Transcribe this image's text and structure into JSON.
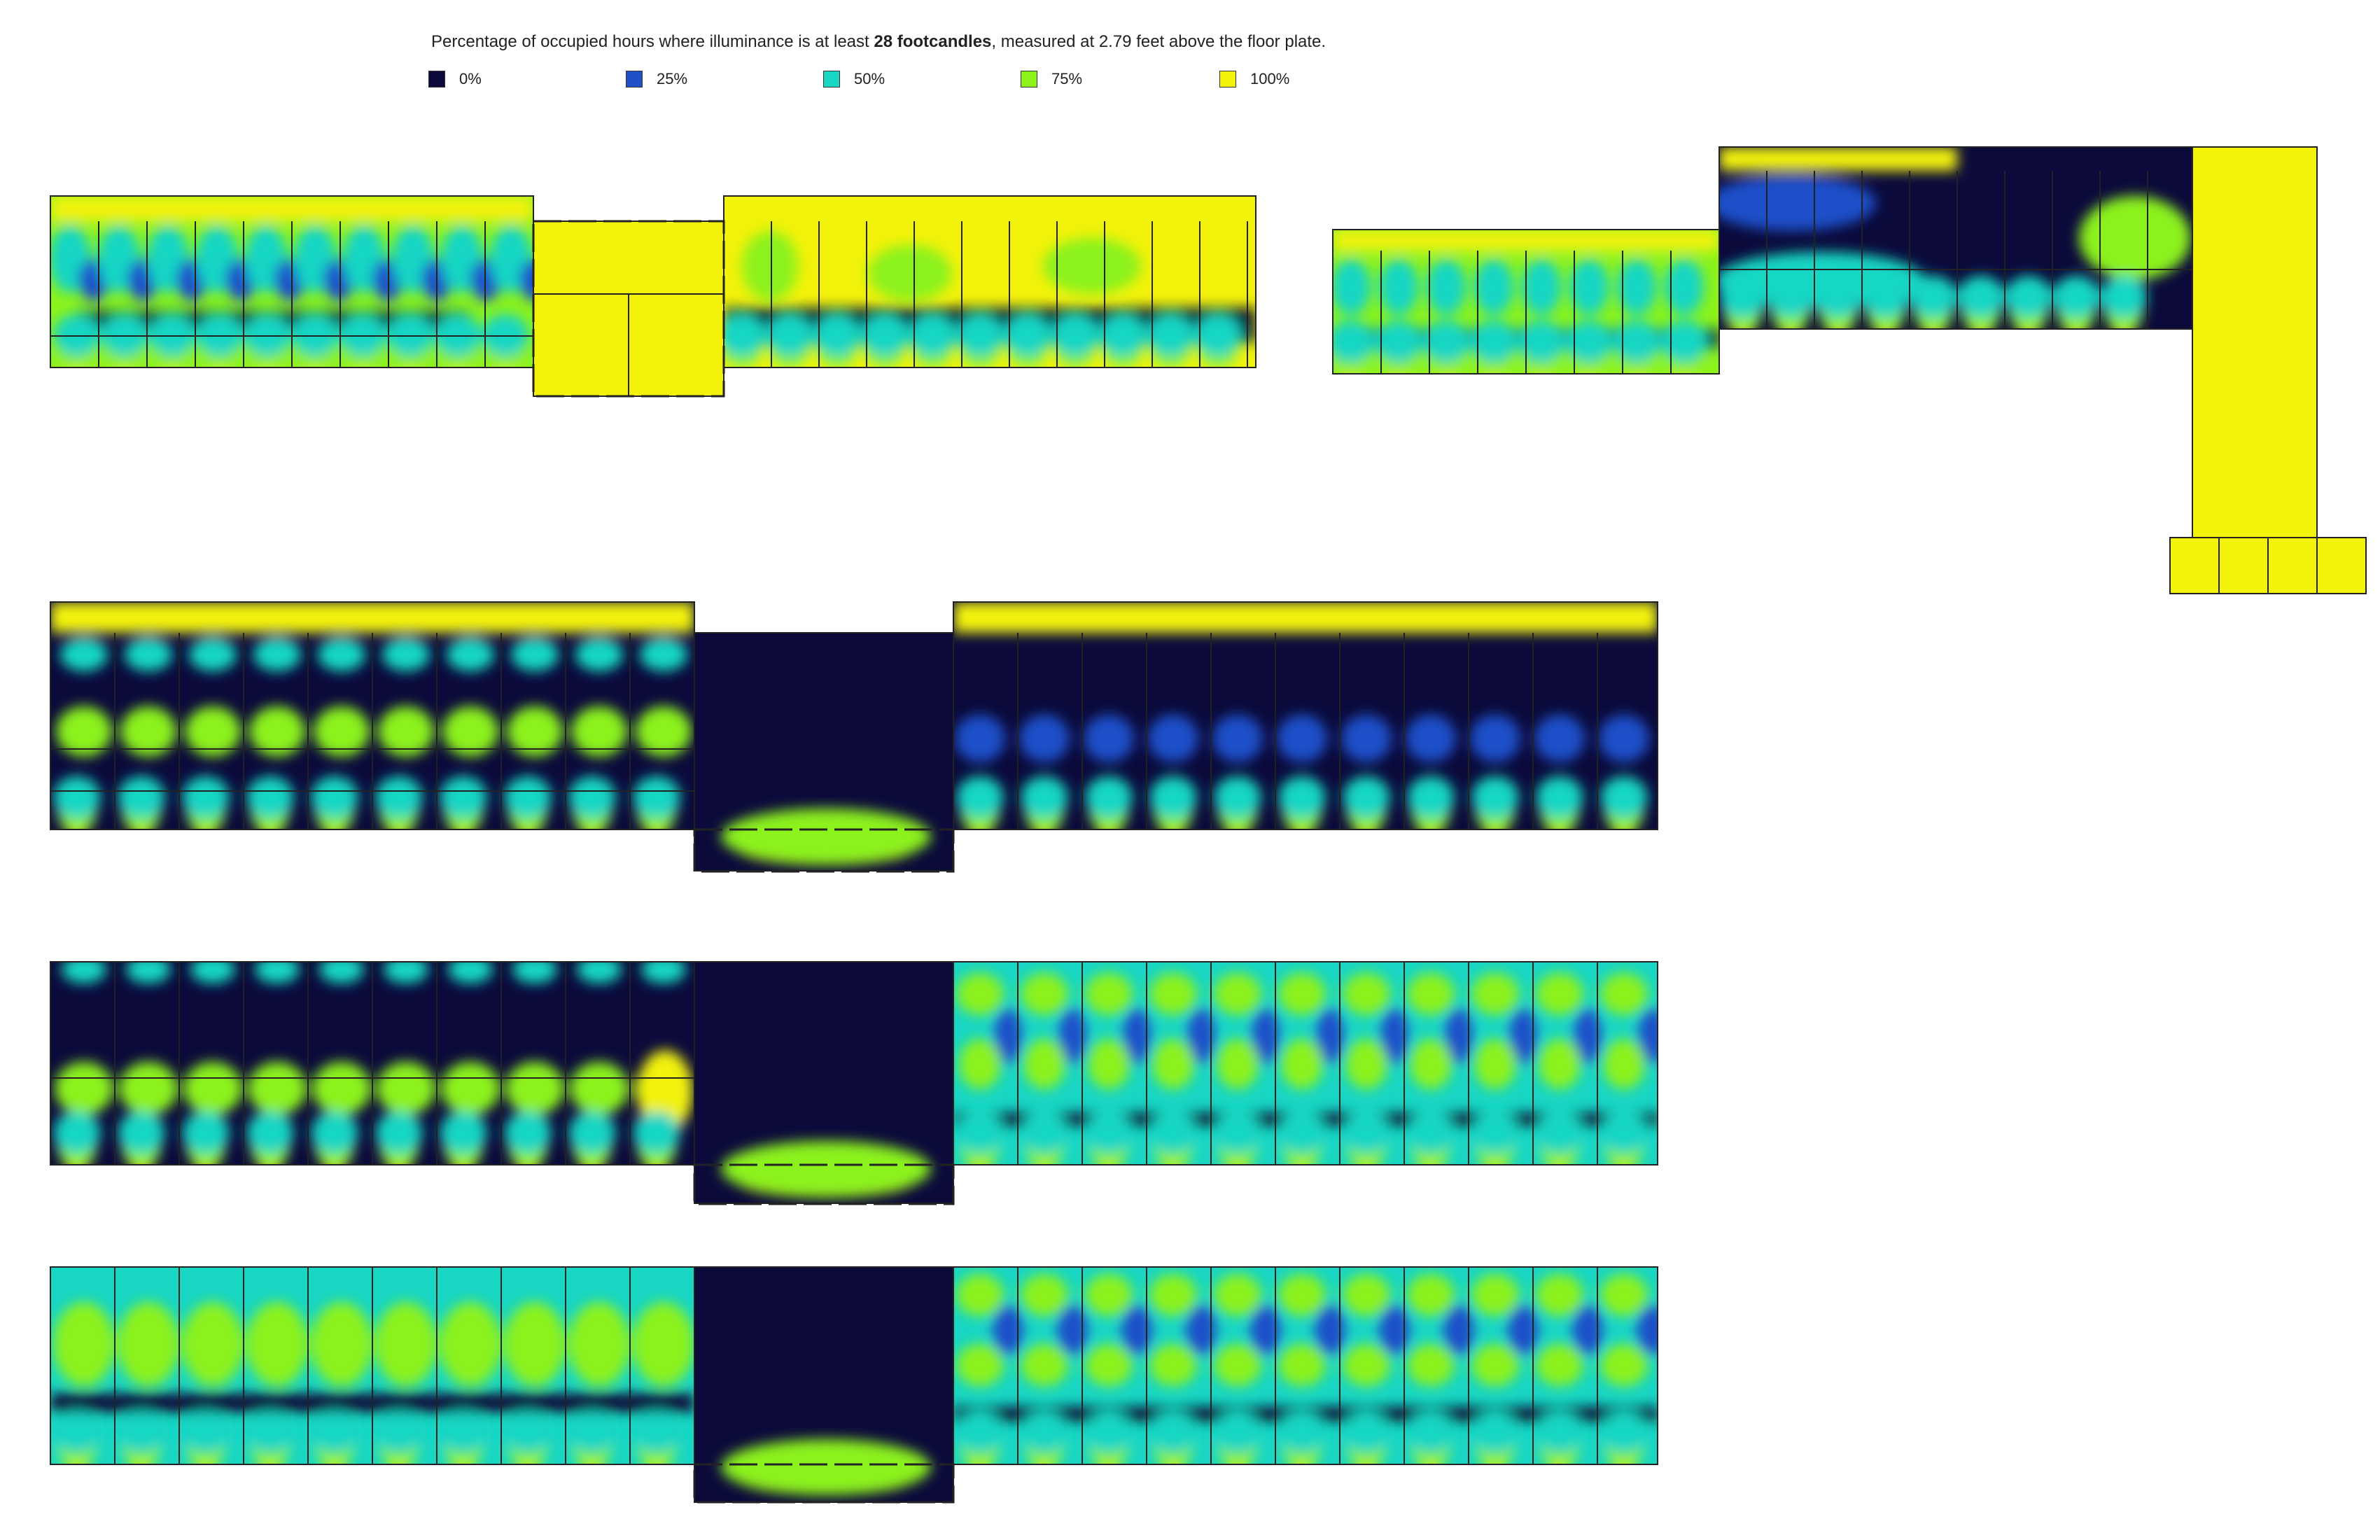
{
  "caption": {
    "prefix": "Percentage of occupied hours where illuminance is at least ",
    "bold": "28 footcandles",
    "suffix": ", measured at 2.79 feet above the floor plate."
  },
  "legend": [
    {
      "label": "0%",
      "color": "#0b0a3b"
    },
    {
      "label": "25%",
      "color": "#1f4fc9"
    },
    {
      "label": "50%",
      "color": "#18d6c4"
    },
    {
      "label": "75%",
      "color": "#8cf21a"
    },
    {
      "label": "100%",
      "color": "#f2f20a"
    }
  ],
  "colors": {
    "dark": "#0b0a3b",
    "blue": "#1f4fc9",
    "teal": "#18d6c4",
    "green": "#8cf21a",
    "yellow": "#f2f20a",
    "wall": "#222222"
  }
}
